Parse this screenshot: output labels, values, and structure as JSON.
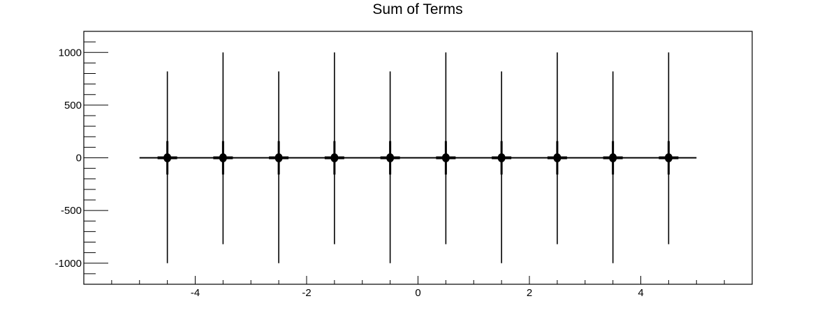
{
  "chart_data": {
    "type": "line",
    "title": "Sum of Terms",
    "xlabel": "",
    "ylabel": "",
    "xlim": [
      -6,
      6
    ],
    "ylim": [
      -1200,
      1200
    ],
    "grid": false,
    "legend": "none",
    "x_ticks": [
      -4,
      -2,
      0,
      2,
      4
    ],
    "x_tick_labels": [
      "-4",
      "-2",
      "0",
      "2",
      "4"
    ],
    "y_ticks": [
      1000,
      500,
      0,
      -500,
      -1000
    ],
    "y_tick_labels": [
      "1000",
      "500",
      "0",
      "-500",
      "-1000"
    ],
    "x_range": [
      -5,
      5
    ],
    "baseline": 0,
    "series": [
      {
        "color": "#000000",
        "spikes": [
          {
            "x": -4.5,
            "max": 820,
            "min": -1000
          },
          {
            "x": -3.5,
            "max": 1000,
            "min": -820
          },
          {
            "x": -2.5,
            "max": 820,
            "min": -1000
          },
          {
            "x": -1.5,
            "max": 1000,
            "min": -820
          },
          {
            "x": -0.5,
            "max": 820,
            "min": -1000
          },
          {
            "x": 0.5,
            "max": 1000,
            "min": -820
          },
          {
            "x": 1.5,
            "max": 820,
            "min": -1000
          },
          {
            "x": 2.5,
            "max": 1000,
            "min": -820
          },
          {
            "x": 3.5,
            "max": 820,
            "min": -1000
          },
          {
            "x": 4.5,
            "max": 1000,
            "min": -820
          }
        ]
      }
    ]
  }
}
